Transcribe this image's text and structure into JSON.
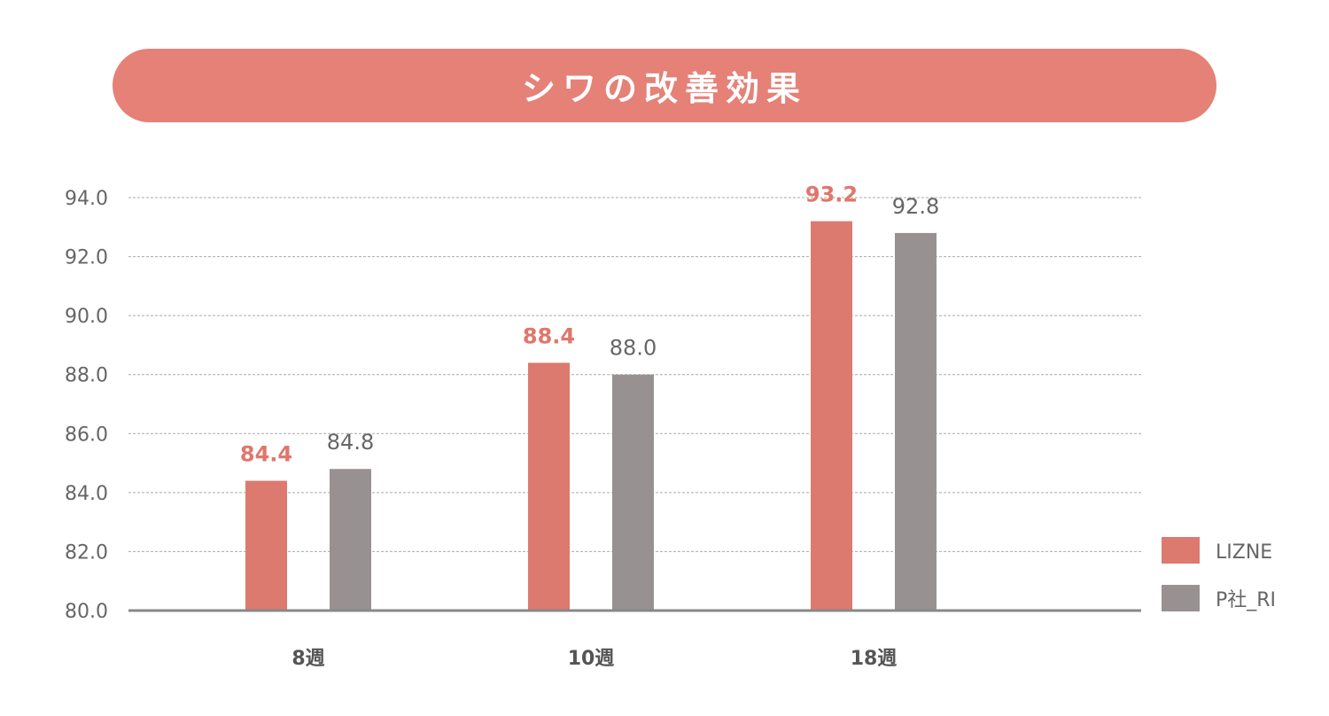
{
  "chart_data": {
    "type": "bar",
    "title": "シワの改善効果",
    "categories": [
      "8週",
      "10週",
      "18週"
    ],
    "series": [
      {
        "name": "LIZNE",
        "values": [
          84.4,
          88.4,
          93.2
        ],
        "color": "#dc7a70",
        "label_color": "#e0766b"
      },
      {
        "name": "P社_RI",
        "values": [
          84.8,
          88.0,
          92.8
        ],
        "color": "#979291",
        "label_color": "#666666"
      }
    ],
    "yticks": [
      "80.0",
      "82.0",
      "84.0",
      "86.0",
      "88.0",
      "90.0",
      "92.0",
      "94.0"
    ],
    "ylim": [
      80,
      94
    ],
    "grid": true,
    "legend": "bottom-right",
    "xlabel": "",
    "ylabel": ""
  }
}
